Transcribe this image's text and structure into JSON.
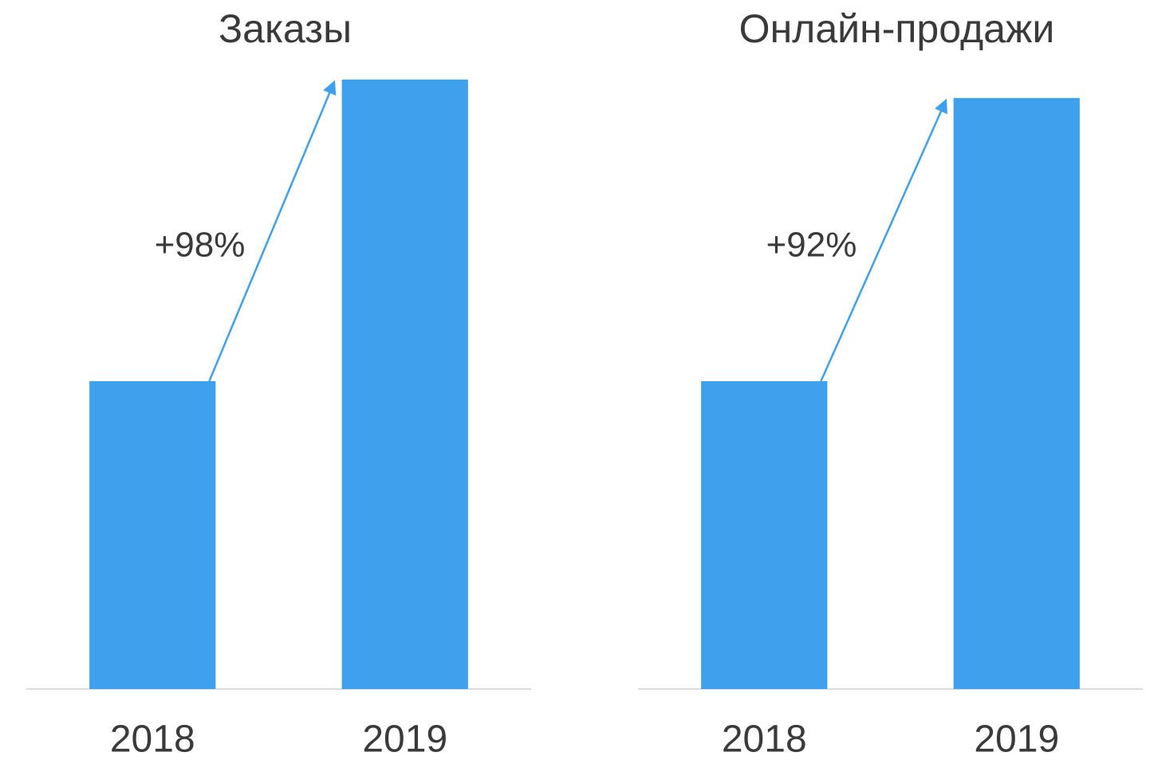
{
  "chart_data": [
    {
      "type": "bar",
      "title": "Заказы",
      "categories": [
        "2018",
        "2019"
      ],
      "values": [
        100,
        198
      ],
      "color": "#3fa0ee",
      "ylim": [
        0,
        200
      ],
      "annotation": "+98%"
    },
    {
      "type": "bar",
      "title": "Онлайн-продажи",
      "categories": [
        "2018",
        "2019"
      ],
      "values": [
        100,
        192
      ],
      "color": "#3fa0ee",
      "ylim": [
        0,
        200
      ],
      "annotation": "+92%"
    }
  ]
}
